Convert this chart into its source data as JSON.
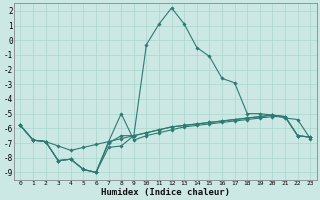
{
  "xlabel": "Humidex (Indice chaleur)",
  "xlim": [
    -0.5,
    23.5
  ],
  "ylim": [
    -9.5,
    2.5
  ],
  "yticks": [
    2,
    1,
    0,
    -1,
    -2,
    -3,
    -4,
    -5,
    -6,
    -7,
    -8,
    -9
  ],
  "xticks": [
    0,
    1,
    2,
    3,
    4,
    5,
    6,
    7,
    8,
    9,
    10,
    11,
    12,
    13,
    14,
    15,
    16,
    17,
    18,
    19,
    20,
    21,
    22,
    23
  ],
  "background_color": "#cce8e4",
  "line_color": "#2d7a72",
  "grid_color": "#aad4ce",
  "line1_y": [
    -5.8,
    -6.8,
    -6.9,
    -7.2,
    -7.5,
    -7.3,
    -7.1,
    -6.9,
    -6.7,
    -6.5,
    -6.3,
    -6.1,
    -5.9,
    -5.8,
    -5.7,
    -5.6,
    -5.5,
    -5.4,
    -5.3,
    -5.2,
    -5.1,
    -5.2,
    -6.5,
    -6.6
  ],
  "line2_y": [
    -5.8,
    -6.8,
    -6.9,
    -8.2,
    -8.1,
    -8.8,
    -9.0,
    -7.3,
    -7.2,
    -6.5,
    -0.3,
    1.1,
    2.2,
    1.1,
    -0.5,
    -1.1,
    -2.6,
    -2.9,
    -5.0,
    -5.0,
    -5.1,
    -5.3,
    -5.4,
    -6.7
  ],
  "line3_y": [
    -5.8,
    -6.8,
    -6.9,
    -8.2,
    -8.1,
    -8.8,
    -9.0,
    -7.0,
    -6.5,
    -6.5,
    -6.3,
    -6.1,
    -5.9,
    -5.8,
    -5.7,
    -5.6,
    -5.5,
    -5.4,
    -5.3,
    -5.2,
    -5.1,
    -5.2,
    -6.5,
    -6.6
  ],
  "line4_y": [
    -5.8,
    -6.8,
    -6.9,
    -8.2,
    -8.1,
    -8.8,
    -9.0,
    -6.9,
    -5.0,
    -6.8,
    -6.5,
    -6.3,
    -6.1,
    -5.9,
    -5.8,
    -5.7,
    -5.6,
    -5.5,
    -5.4,
    -5.3,
    -5.2,
    -5.2,
    -6.5,
    -6.6
  ]
}
